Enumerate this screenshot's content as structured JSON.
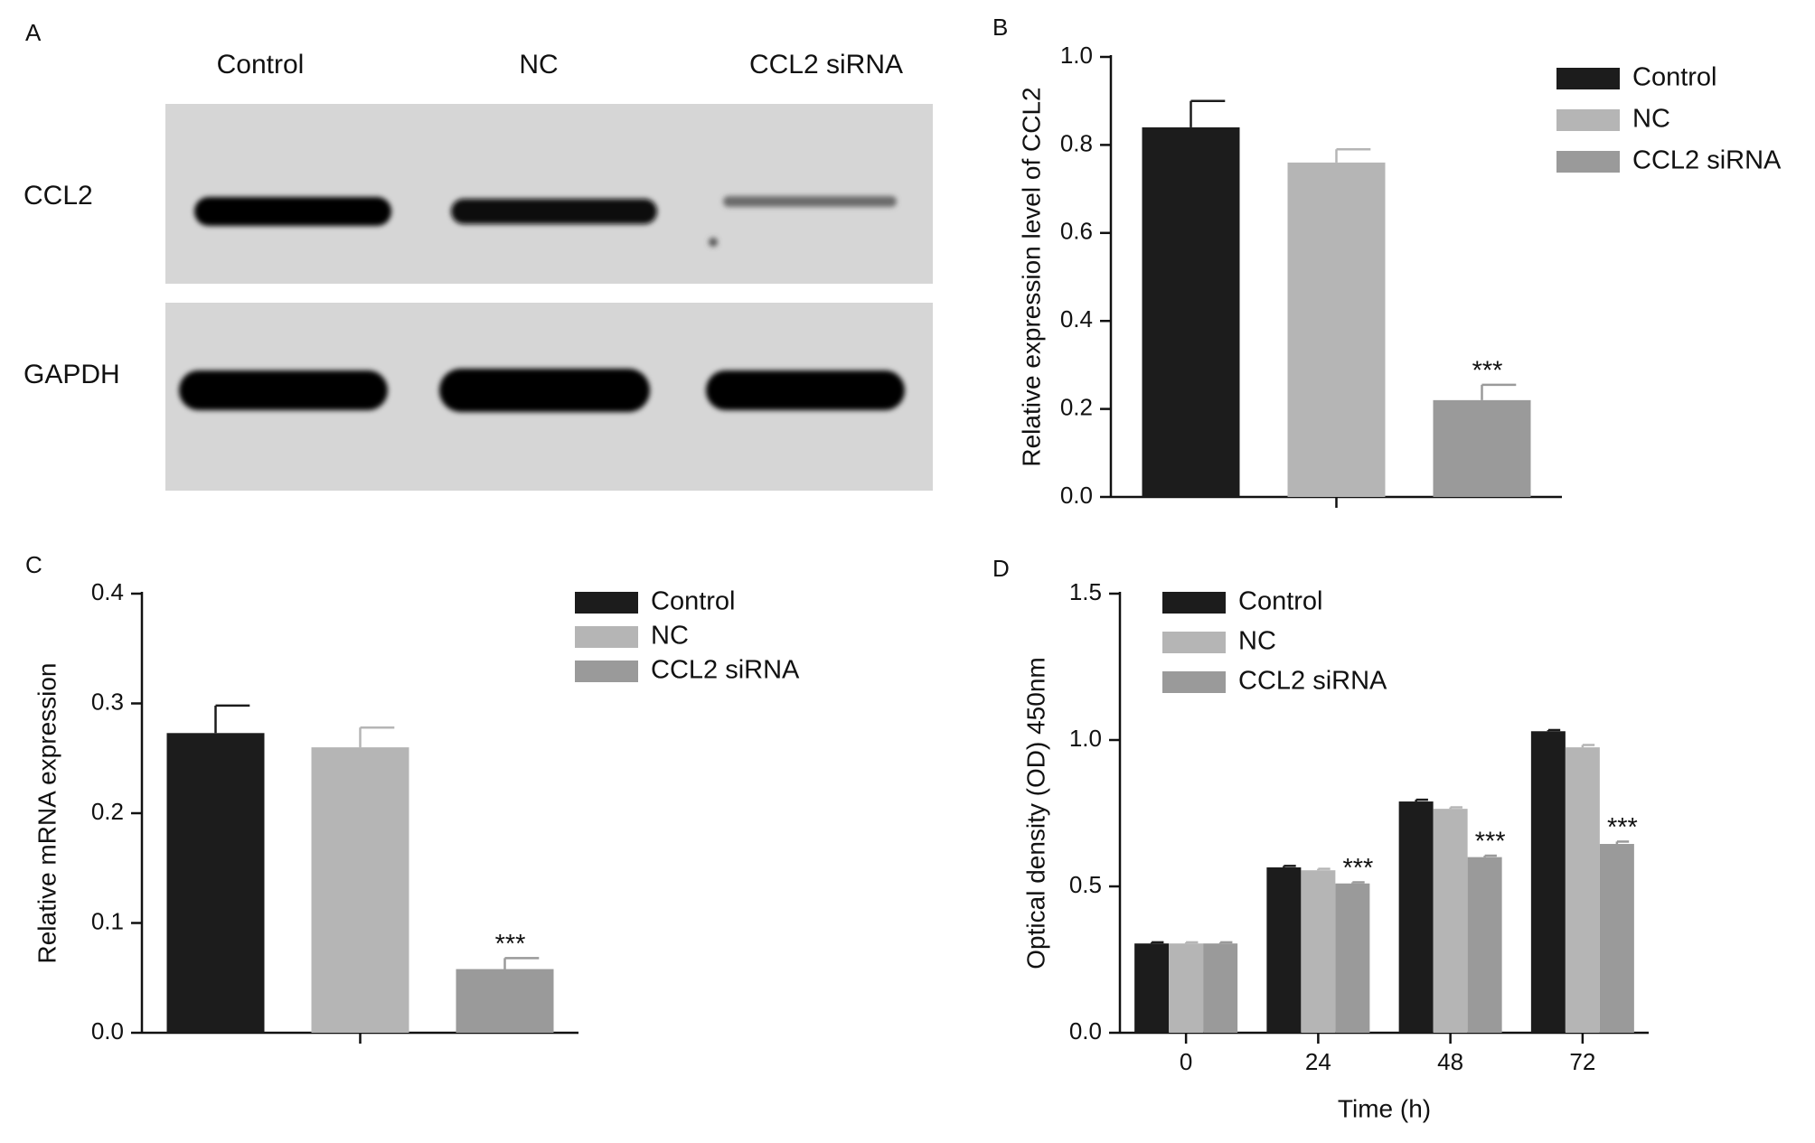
{
  "panel_a": {
    "label": "A",
    "lanes": [
      "Control",
      "NC",
      "CCL2 siRNA"
    ],
    "rows": [
      "CCL2",
      "GAPDH"
    ]
  },
  "chart_data": [
    {
      "type": "bar",
      "panel_label": "B",
      "y_label": "Relative  expression level of CCL2",
      "categories": [
        null
      ],
      "series": [
        {
          "name": "Control",
          "color": "#1c1c1c",
          "values": [
            0.84
          ],
          "errors": [
            0.06
          ]
        },
        {
          "name": "NC",
          "color": "#b5b5b5",
          "values": [
            0.76
          ],
          "errors": [
            0.03
          ]
        },
        {
          "name": "CCL2 siRNA",
          "color": "#9a9a9a",
          "values": [
            0.22
          ],
          "errors": [
            0.035
          ],
          "annotations": [
            "***"
          ]
        }
      ],
      "ylim": [
        0,
        1
      ],
      "yticks": [
        {
          "value": 0,
          "label": "0.0"
        },
        0.2,
        0.4,
        0.6,
        0.8,
        {
          "value": 1,
          "label": "1.0"
        }
      ]
    },
    {
      "type": "bar",
      "panel_label": "C",
      "y_label": "Relative mRNA expression",
      "categories": [
        null
      ],
      "series": [
        {
          "name": "Control",
          "color": "#1c1c1c",
          "values": [
            0.273
          ],
          "errors": [
            0.025
          ]
        },
        {
          "name": "NC",
          "color": "#b5b5b5",
          "values": [
            0.26
          ],
          "errors": [
            0.018
          ]
        },
        {
          "name": "CCL2 siRNA",
          "color": "#9a9a9a",
          "values": [
            0.058
          ],
          "errors": [
            0.01
          ],
          "annotations": [
            "***"
          ]
        }
      ],
      "ylim": [
        0,
        0.4
      ],
      "yticks": [
        {
          "value": 0,
          "label": "0.0"
        },
        0.1,
        0.2,
        0.3,
        0.4
      ]
    },
    {
      "type": "bar",
      "panel_label": "D",
      "y_label": "Optical density (OD) 450nm",
      "x_label": "Time (h)",
      "categories": [
        "0",
        "24",
        "48",
        "72"
      ],
      "series": [
        {
          "name": "Control",
          "color": "#1c1c1c",
          "values": [
            0.305,
            0.565,
            0.79,
            1.03
          ],
          "errors": [
            0.004,
            0.005,
            0.006,
            0.004
          ]
        },
        {
          "name": "NC",
          "color": "#b5b5b5",
          "values": [
            0.305,
            0.555,
            0.765,
            0.975
          ],
          "errors": [
            0.004,
            0.005,
            0.005,
            0.008
          ]
        },
        {
          "name": "CCL2 siRNA",
          "color": "#9a9a9a",
          "values": [
            0.305,
            0.51,
            0.6,
            0.645
          ],
          "errors": [
            0.004,
            0.004,
            0.005,
            0.008
          ],
          "annotations": [
            null,
            "***",
            "***",
            "***"
          ]
        }
      ],
      "ylim": [
        0,
        1.5
      ],
      "yticks": [
        {
          "value": 0,
          "label": "0.0"
        },
        {
          "value": 0.5,
          "label": "0.5"
        },
        {
          "value": 1,
          "label": "1.0"
        },
        {
          "value": 1.5,
          "label": "1.5"
        }
      ]
    }
  ]
}
